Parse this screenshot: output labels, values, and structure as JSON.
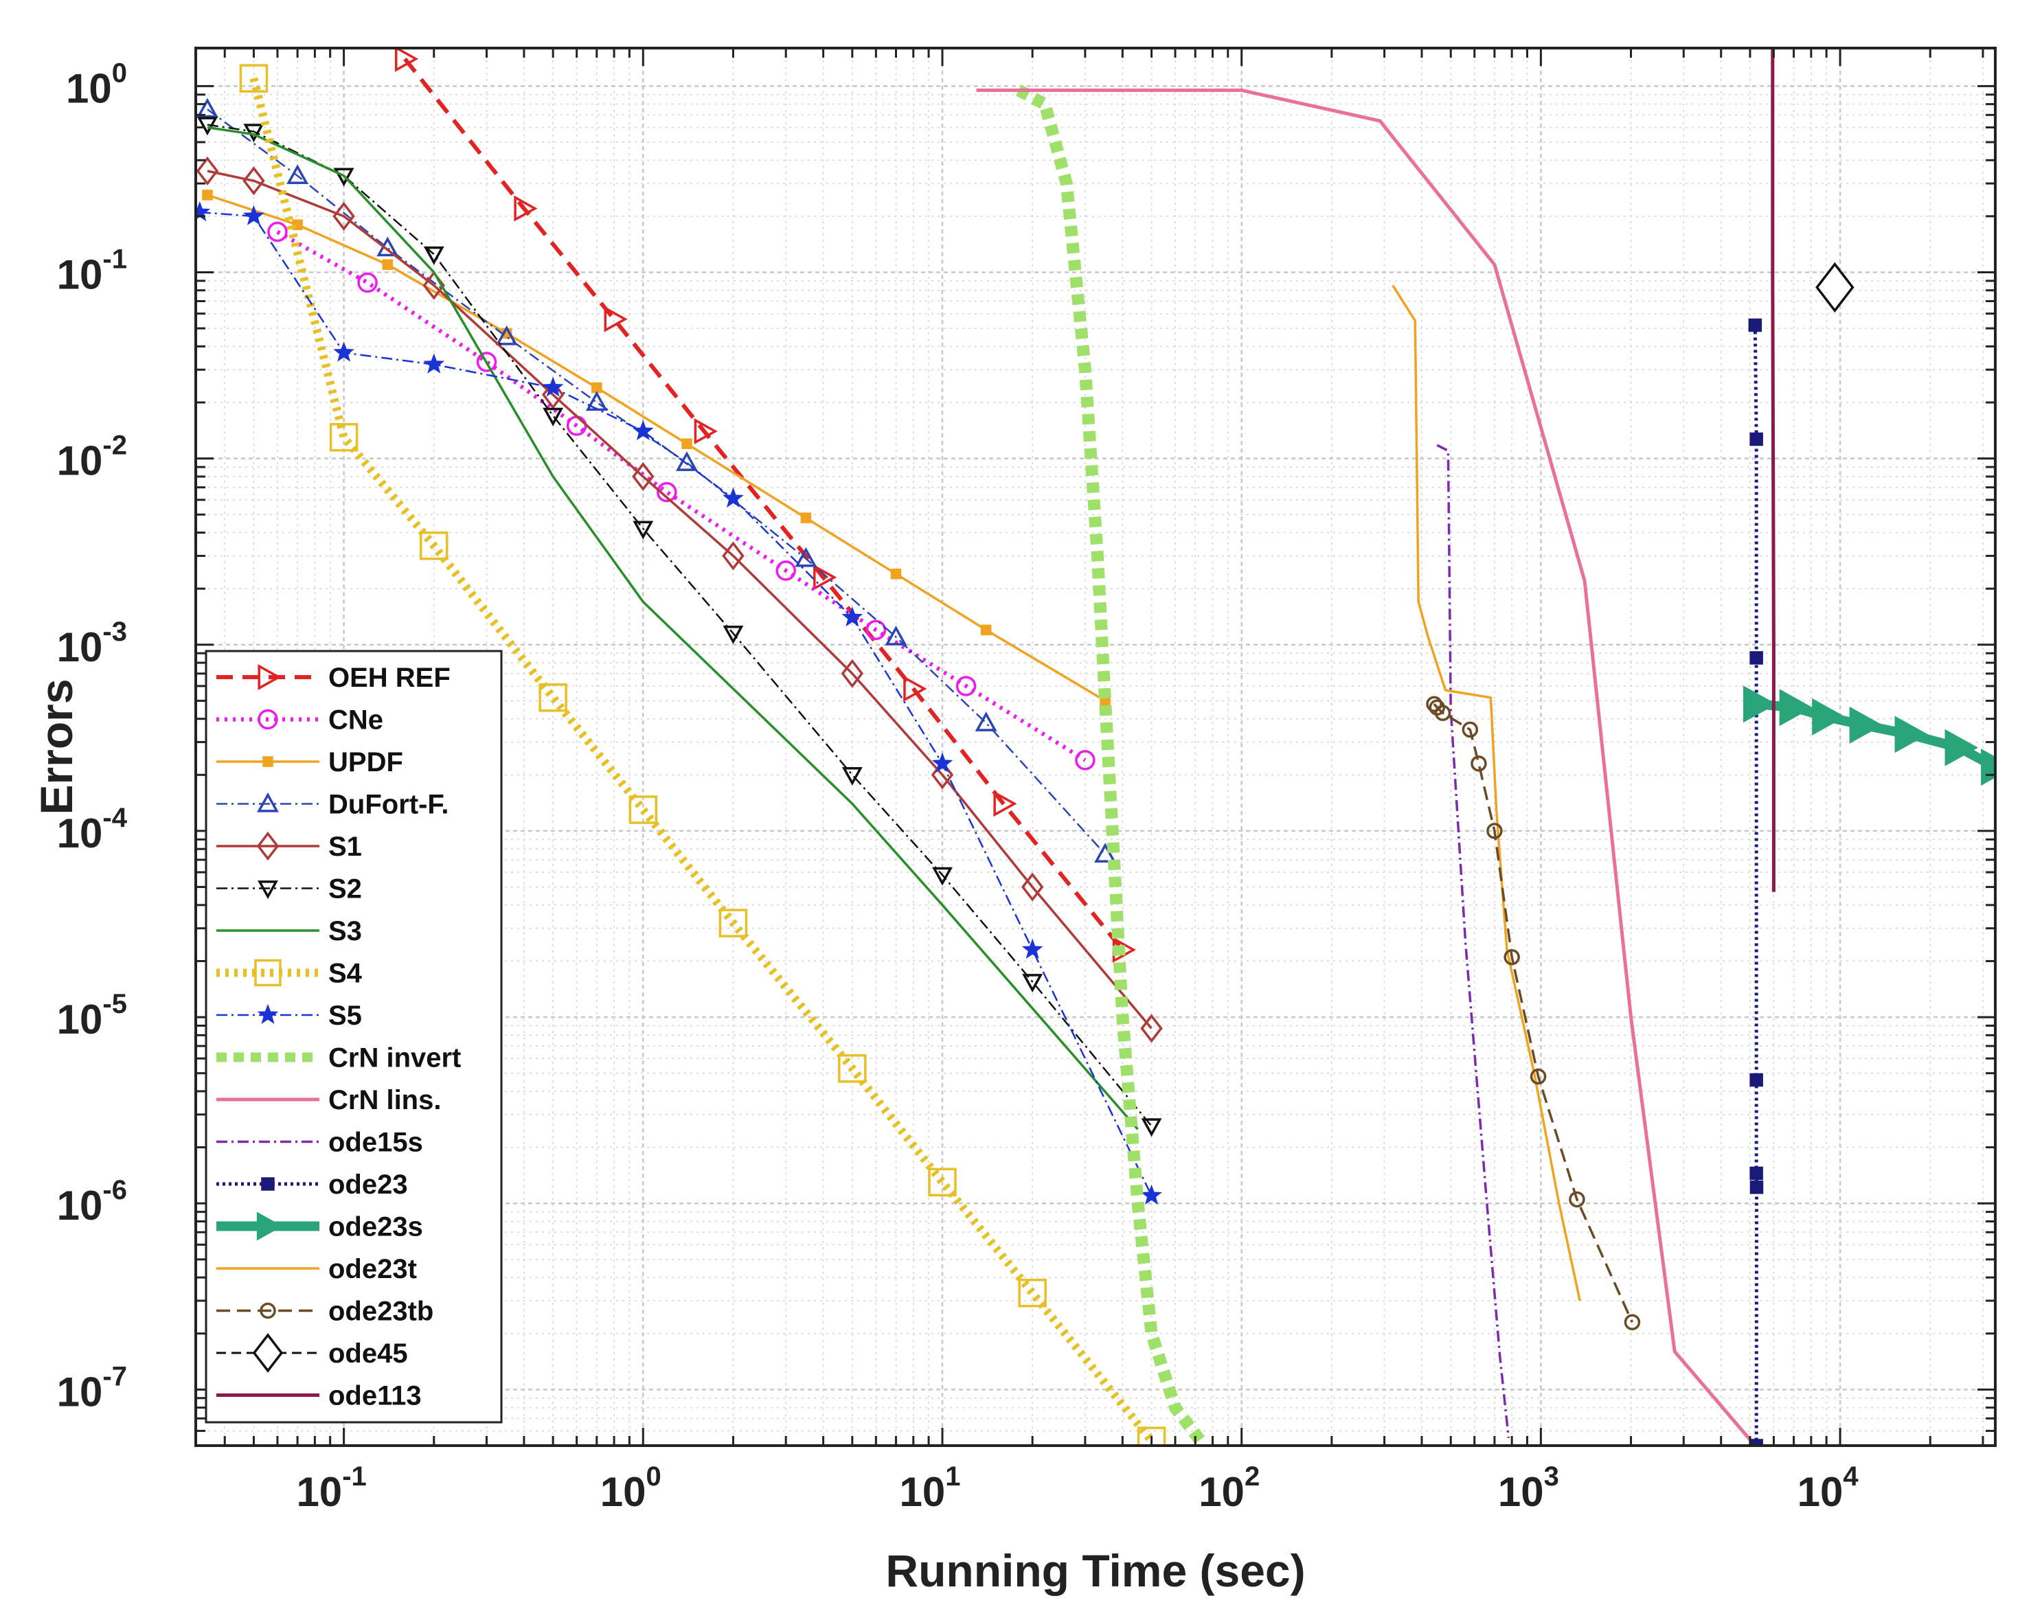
{
  "chart_data": {
    "type": "line",
    "xscale": "log",
    "yscale": "log",
    "xlabel": "Running Time (sec)",
    "ylabel": "Errors",
    "xlim": [
      0.032,
      33000
    ],
    "ylim": [
      5e-08,
      1.6
    ],
    "grid": true,
    "legend_position": "bottom-left",
    "xticks": [
      {
        "value": 0.1,
        "base": "10",
        "exp": "-1"
      },
      {
        "value": 1,
        "base": "10",
        "exp": "0"
      },
      {
        "value": 10,
        "base": "10",
        "exp": "1"
      },
      {
        "value": 100,
        "base": "10",
        "exp": "2"
      },
      {
        "value": 1000,
        "base": "10",
        "exp": "3"
      },
      {
        "value": 10000,
        "base": "10",
        "exp": "4"
      }
    ],
    "yticks": [
      {
        "value": 1,
        "base": "10",
        "exp": "0"
      },
      {
        "value": 0.1,
        "base": "10",
        "exp": "-1"
      },
      {
        "value": 0.01,
        "base": "10",
        "exp": "-2"
      },
      {
        "value": 0.001,
        "base": "10",
        "exp": "-3"
      },
      {
        "value": 0.0001,
        "base": "10",
        "exp": "-4"
      },
      {
        "value": 1e-05,
        "base": "10",
        "exp": "-5"
      },
      {
        "value": 1e-06,
        "base": "10",
        "exp": "-6"
      },
      {
        "value": 1e-07,
        "base": "10",
        "exp": "-7"
      }
    ],
    "series": [
      {
        "name": "OEH REF",
        "color": "#e32222",
        "width": 6,
        "dash": "24,14",
        "marker": "tri-right",
        "marker_size": 16,
        "marker_fill": "none",
        "x": [
          0.16,
          0.4,
          0.8,
          1.6,
          4,
          8,
          16,
          40
        ],
        "y": [
          1.4,
          0.22,
          0.056,
          0.014,
          0.0023,
          0.00058,
          0.00014,
          2.3e-05
        ]
      },
      {
        "name": "CNe",
        "color": "#ee1bee",
        "width": 6,
        "dash": "4,8",
        "marker": "circle",
        "marker_size": 13,
        "marker_fill": "none",
        "x": [
          0.06,
          0.12,
          0.3,
          0.6,
          1.2,
          3,
          6,
          12,
          30
        ],
        "y": [
          0.165,
          0.088,
          0.033,
          0.015,
          0.0066,
          0.0025,
          0.0012,
          0.0006,
          0.00024
        ]
      },
      {
        "name": "UPDF",
        "color": "#f0a31f",
        "width": 3.5,
        "dash": "",
        "marker": "square",
        "marker_size": 6,
        "marker_fill": "#f0a31f",
        "x": [
          0.035,
          0.07,
          0.14,
          0.35,
          0.7,
          1.4,
          3.5,
          7,
          14,
          35
        ],
        "y": [
          0.26,
          0.18,
          0.11,
          0.047,
          0.024,
          0.012,
          0.0048,
          0.0024,
          0.0012,
          0.0005
        ]
      },
      {
        "name": "DuFort-F.",
        "color": "#2b45b5",
        "width": 2.5,
        "dash": "16,6,3,6",
        "marker": "tri-up",
        "marker_size": 13,
        "marker_fill": "none",
        "x": [
          0.035,
          0.07,
          0.14,
          0.35,
          0.7,
          1.4,
          3.5,
          7,
          14,
          35
        ],
        "y": [
          0.75,
          0.33,
          0.135,
          0.045,
          0.02,
          0.0095,
          0.0029,
          0.0011,
          0.00038,
          7.5e-05
        ]
      },
      {
        "name": "S1",
        "color": "#b03a3a",
        "width": 3.5,
        "dash": "",
        "marker": "diamond",
        "marker_size": 14,
        "marker_fill": "none",
        "x": [
          0.035,
          0.05,
          0.1,
          0.2,
          0.5,
          1,
          2,
          5,
          10,
          20,
          50
        ],
        "y": [
          0.35,
          0.31,
          0.2,
          0.085,
          0.022,
          0.008,
          0.003,
          0.0007,
          0.0002,
          5e-05,
          8.7e-06
        ]
      },
      {
        "name": "S2",
        "color": "#111111",
        "width": 2.5,
        "dash": "16,6,3,6",
        "marker": "tri-down",
        "marker_size": 12,
        "marker_fill": "none",
        "x": [
          0.035,
          0.05,
          0.1,
          0.2,
          0.5,
          1,
          2,
          5,
          10,
          20,
          50
        ],
        "y": [
          0.62,
          0.57,
          0.33,
          0.125,
          0.017,
          0.0042,
          0.00115,
          0.0002,
          5.8e-05,
          1.55e-05,
          2.6e-06
        ]
      },
      {
        "name": "S3",
        "color": "#2a8f2a",
        "width": 3.5,
        "dash": "",
        "marker": "none",
        "marker_size": 0,
        "marker_fill": "none",
        "x": [
          0.035,
          0.05,
          0.1,
          0.2,
          0.5,
          1,
          5,
          10,
          45
        ],
        "y": [
          0.6,
          0.55,
          0.33,
          0.1,
          0.008,
          0.0017,
          0.00014,
          4e-05,
          2.5e-06
        ]
      },
      {
        "name": "S4",
        "color": "#e8bf25",
        "width": 12,
        "dash": "5,8",
        "marker": "square",
        "marker_size": 19,
        "marker_fill": "none",
        "x": [
          0.05,
          0.1,
          0.2,
          0.5,
          1,
          2,
          5,
          10,
          20,
          50
        ],
        "y": [
          1.1,
          0.013,
          0.0034,
          0.00052,
          0.00013,
          3.2e-05,
          5.3e-06,
          1.3e-06,
          3.3e-07,
          5.3e-08
        ]
      },
      {
        "name": "S5",
        "color": "#1a33d6",
        "width": 2.5,
        "dash": "16,6,3,6",
        "marker": "star",
        "marker_size": 14,
        "marker_fill": "#1a33d6",
        "x": [
          0.033,
          0.05,
          0.1,
          0.2,
          0.5,
          1,
          2,
          5,
          10,
          20,
          50
        ],
        "y": [
          0.21,
          0.2,
          0.037,
          0.032,
          0.024,
          0.014,
          0.0061,
          0.0014,
          0.00023,
          2.3e-05,
          1.1e-06
        ]
      },
      {
        "name": "CrN invert",
        "color": "#9ee06a",
        "width": 18,
        "dash": "15,10",
        "marker": "none",
        "marker_size": 0,
        "marker_fill": "none",
        "x": [
          18,
          22,
          26,
          30,
          33,
          35,
          37,
          40,
          45,
          50,
          60,
          75
        ],
        "y": [
          0.95,
          0.8,
          0.3,
          0.03,
          0.003,
          0.0005,
          0.0001,
          1e-05,
          1e-06,
          2e-07,
          8e-08,
          5e-08
        ]
      },
      {
        "name": "CrN lins.",
        "color": "#e8709a",
        "width": 5,
        "dash": "",
        "marker": "none",
        "marker_size": 0,
        "marker_fill": "none",
        "x": [
          13,
          100,
          290,
          700,
          1400,
          2000,
          2800,
          5200
        ],
        "y": [
          0.95,
          0.95,
          0.65,
          0.11,
          0.0022,
          1e-05,
          1.6e-07,
          5e-08
        ]
      },
      {
        "name": "ode15s",
        "color": "#7c2ab0",
        "width": 3.5,
        "dash": "16,6,3,6",
        "marker": "none",
        "marker_size": 0,
        "marker_fill": "none",
        "x": [
          450,
          490,
          500,
          560,
          660,
          730,
          780
        ],
        "y": [
          0.0118,
          0.011,
          0.00045,
          2.5e-05,
          1e-06,
          1.5e-07,
          5.5e-08
        ]
      },
      {
        "name": "ode23",
        "color": "#1a1a7a",
        "width": 5,
        "dash": "4,5",
        "marker": "square",
        "marker_size": 8,
        "marker_fill": "#1a1a7a",
        "x": [
          5200,
          5250,
          5250,
          5250,
          5250,
          5260,
          5250
        ],
        "y": [
          0.052,
          0.0127,
          0.00085,
          4.6e-06,
          1.45e-06,
          1.22e-06,
          5e-08
        ]
      },
      {
        "name": "ode23s",
        "color": "#2aa57a",
        "width": 14,
        "dash": "",
        "marker": "tri-right",
        "marker_size": 24,
        "marker_fill": "#2aa57a",
        "x": [
          5300,
          7000,
          9000,
          12000,
          17000,
          25000,
          33000
        ],
        "y": [
          0.00048,
          0.00046,
          0.00041,
          0.00037,
          0.00033,
          0.00028,
          0.00022
        ]
      },
      {
        "name": "ode23t",
        "color": "#f0a31f",
        "width": 3.5,
        "dash": "",
        "marker": "none",
        "marker_size": 0,
        "marker_fill": "none",
        "x": [
          320,
          380,
          390,
          420,
          480,
          680,
          710,
          770,
          950,
          1150,
          1350
        ],
        "y": [
          0.085,
          0.055,
          0.0017,
          0.0011,
          0.00057,
          0.00052,
          0.00013,
          2.3e-05,
          5e-06,
          1e-06,
          3e-07
        ]
      },
      {
        "name": "ode23tb",
        "color": "#6b4a26",
        "width": 3.5,
        "dash": "20,10",
        "marker": "circle",
        "marker_size": 10,
        "marker_fill": "none",
        "x": [
          440,
          450,
          470,
          580,
          620,
          700,
          800,
          980,
          1320,
          2020
        ],
        "y": [
          0.00048,
          0.00046,
          0.00043,
          0.00035,
          0.00023,
          0.0001,
          2.1e-05,
          4.8e-06,
          1.05e-06,
          2.3e-07
        ]
      },
      {
        "name": "ode45",
        "color": "#111111",
        "width": 3,
        "dash": "14,8",
        "marker": "diamond-large",
        "marker_size": 26,
        "marker_fill": "#ffffff",
        "x": [
          9600
        ],
        "y": [
          0.083
        ]
      },
      {
        "name": "ode113",
        "color": "#8b1a4a",
        "width": 5,
        "dash": "",
        "marker": "none",
        "marker_size": 0,
        "marker_fill": "none",
        "x": [
          5950,
          5950,
          6000,
          6000
        ],
        "y": [
          1.6,
          0.1,
          0.001,
          4.7e-05
        ]
      }
    ]
  }
}
